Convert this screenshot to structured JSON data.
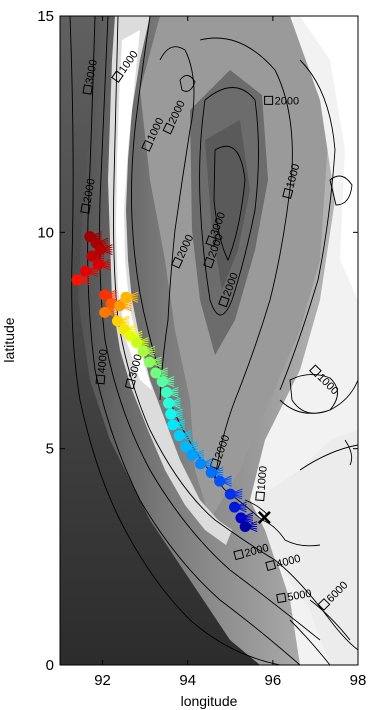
{
  "axes": {
    "xlabel": "longitude",
    "ylabel": "latitude",
    "xlim": [
      91,
      98
    ],
    "ylim": [
      0,
      15
    ],
    "x_ticks": [
      92,
      94,
      96,
      98
    ],
    "y_ticks": [
      0,
      5,
      10,
      15
    ]
  },
  "contour_labels": [
    {
      "text": "1000",
      "lon": 92.35,
      "lat": 13.6,
      "angle": -55
    },
    {
      "text": "3000",
      "lon": 91.65,
      "lat": 13.3,
      "angle": -80
    },
    {
      "text": "2000",
      "lon": 93.55,
      "lat": 12.4,
      "angle": -65
    },
    {
      "text": "1000",
      "lon": 93.05,
      "lat": 12.0,
      "angle": -65
    },
    {
      "text": "2000",
      "lon": 95.9,
      "lat": 13.05,
      "angle": 0
    },
    {
      "text": "1000",
      "lon": 96.35,
      "lat": 10.9,
      "angle": -75
    },
    {
      "text": "2000",
      "lon": 91.6,
      "lat": 10.55,
      "angle": -80
    },
    {
      "text": "3000",
      "lon": 94.55,
      "lat": 9.8,
      "angle": -70
    },
    {
      "text": "2000",
      "lon": 94.5,
      "lat": 9.3,
      "angle": -70
    },
    {
      "text": "2000",
      "lon": 94.85,
      "lat": 8.4,
      "angle": -70
    },
    {
      "text": "2000",
      "lon": 93.75,
      "lat": 9.3,
      "angle": -65
    },
    {
      "text": "1000",
      "lon": 97.0,
      "lat": 6.8,
      "angle": 45
    },
    {
      "text": "4000",
      "lon": 91.95,
      "lat": 6.6,
      "angle": -85
    },
    {
      "text": "3000",
      "lon": 92.65,
      "lat": 6.5,
      "angle": -75
    },
    {
      "text": "2000",
      "lon": 94.65,
      "lat": 4.65,
      "angle": -70
    },
    {
      "text": "1000",
      "lon": 95.7,
      "lat": 3.9,
      "angle": -85
    },
    {
      "text": "2000",
      "lon": 95.2,
      "lat": 2.55,
      "angle": -15
    },
    {
      "text": "4000",
      "lon": 95.95,
      "lat": 2.3,
      "angle": -15
    },
    {
      "text": "5000",
      "lon": 96.2,
      "lat": 1.55,
      "angle": -10
    },
    {
      "text": "6000",
      "lon": 97.2,
      "lat": 1.4,
      "angle": -45
    }
  ],
  "marker": {
    "symbol": "×",
    "lon": 95.8,
    "lat": 3.4
  },
  "track": [
    {
      "lon": 91.7,
      "lat": 9.9,
      "color": "#9e0000"
    },
    {
      "lon": 91.85,
      "lat": 9.75,
      "color": "#a60000"
    },
    {
      "lon": 91.95,
      "lat": 9.6,
      "color": "#b40000"
    },
    {
      "lon": 91.75,
      "lat": 9.45,
      "color": "#c00000"
    },
    {
      "lon": 91.9,
      "lat": 9.25,
      "color": "#d60000"
    },
    {
      "lon": 91.6,
      "lat": 9.1,
      "color": "#e60000"
    },
    {
      "lon": 91.4,
      "lat": 8.9,
      "color": "#ff1000"
    },
    {
      "lon": 92.05,
      "lat": 8.55,
      "color": "#ff3000"
    },
    {
      "lon": 92.2,
      "lat": 8.35,
      "color": "#ff5a00"
    },
    {
      "lon": 92.05,
      "lat": 8.15,
      "color": "#ff7800"
    },
    {
      "lon": 92.4,
      "lat": 8.3,
      "color": "#ff9c00"
    },
    {
      "lon": 92.55,
      "lat": 8.5,
      "color": "#ffb400"
    },
    {
      "lon": 92.35,
      "lat": 7.95,
      "color": "#ffd200"
    },
    {
      "lon": 92.5,
      "lat": 7.75,
      "color": "#f5e800"
    },
    {
      "lon": 92.65,
      "lat": 7.6,
      "color": "#e6ff00"
    },
    {
      "lon": 92.8,
      "lat": 7.45,
      "color": "#c8ff18"
    },
    {
      "lon": 92.95,
      "lat": 7.25,
      "color": "#a8ff40"
    },
    {
      "lon": 93.1,
      "lat": 7.0,
      "color": "#88ff60"
    },
    {
      "lon": 93.25,
      "lat": 6.75,
      "color": "#70ff80"
    },
    {
      "lon": 93.4,
      "lat": 6.55,
      "color": "#58ffa0"
    },
    {
      "lon": 93.5,
      "lat": 6.3,
      "color": "#40ffc0"
    },
    {
      "lon": 93.55,
      "lat": 6.05,
      "color": "#28ffd8"
    },
    {
      "lon": 93.6,
      "lat": 5.8,
      "color": "#10f8f0"
    },
    {
      "lon": 93.65,
      "lat": 5.55,
      "color": "#00e8ff"
    },
    {
      "lon": 93.8,
      "lat": 5.3,
      "color": "#00d0ff"
    },
    {
      "lon": 93.95,
      "lat": 5.05,
      "color": "#00b8ff"
    },
    {
      "lon": 94.1,
      "lat": 4.85,
      "color": "#00a0ff"
    },
    {
      "lon": 94.3,
      "lat": 4.65,
      "color": "#0088ff"
    },
    {
      "lon": 94.55,
      "lat": 4.45,
      "color": "#0070ff"
    },
    {
      "lon": 94.75,
      "lat": 4.25,
      "color": "#0050ff"
    },
    {
      "lon": 95.0,
      "lat": 3.95,
      "color": "#0030f0"
    },
    {
      "lon": 95.1,
      "lat": 3.65,
      "color": "#0018dc"
    },
    {
      "lon": 95.25,
      "lat": 3.4,
      "color": "#0000c8"
    },
    {
      "lon": 95.35,
      "lat": 3.2,
      "color": "#0000a8"
    }
  ]
}
